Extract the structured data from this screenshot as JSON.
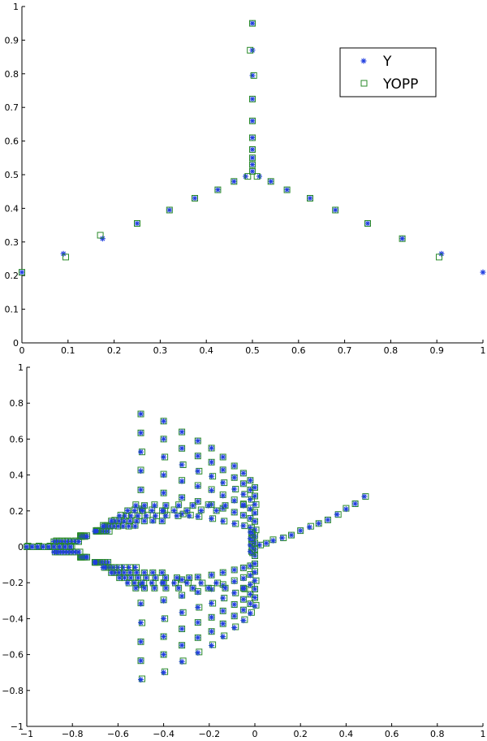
{
  "colors": {
    "Y": "#1f3de0",
    "YOPP": "#2a8a2a"
  },
  "chart_data": [
    {
      "type": "scatter",
      "title": "",
      "xlabel": "",
      "ylabel": "",
      "xlim": [
        0,
        1
      ],
      "ylim": [
        0,
        1
      ],
      "xticks": [
        "0",
        "0.1",
        "0.2",
        "0.3",
        "0.4",
        "0.5",
        "0.6",
        "0.7",
        "0.8",
        "0.9",
        "1"
      ],
      "yticks": [
        "0",
        "0.1",
        "0.2",
        "0.3",
        "0.4",
        "0.5",
        "0.6",
        "0.7",
        "0.8",
        "0.9",
        "1"
      ],
      "grid": false,
      "legend": {
        "placement": "top-right",
        "entries": [
          "Y",
          "YOPP"
        ]
      },
      "series": [
        {
          "name": "Y",
          "marker": "star",
          "points": [
            [
              0.0,
              0.21
            ],
            [
              0.09,
              0.265
            ],
            [
              0.175,
              0.31
            ],
            [
              0.25,
              0.355
            ],
            [
              0.32,
              0.395
            ],
            [
              0.375,
              0.43
            ],
            [
              0.425,
              0.455
            ],
            [
              0.46,
              0.48
            ],
            [
              0.485,
              0.495
            ],
            [
              0.5,
              0.51
            ],
            [
              0.5,
              0.53
            ],
            [
              0.5,
              0.55
            ],
            [
              0.5,
              0.575
            ],
            [
              0.5,
              0.61
            ],
            [
              0.5,
              0.66
            ],
            [
              0.5,
              0.725
            ],
            [
              0.5,
              0.795
            ],
            [
              0.5,
              0.87
            ],
            [
              0.5,
              0.95
            ],
            [
              0.515,
              0.495
            ],
            [
              0.54,
              0.48
            ],
            [
              0.575,
              0.455
            ],
            [
              0.625,
              0.43
            ],
            [
              0.68,
              0.395
            ],
            [
              0.75,
              0.355
            ],
            [
              0.825,
              0.31
            ],
            [
              0.91,
              0.265
            ],
            [
              1.0,
              0.21
            ]
          ]
        },
        {
          "name": "YOPP",
          "marker": "square",
          "points": [
            [
              0.0,
              0.21
            ],
            [
              0.095,
              0.255
            ],
            [
              0.17,
              0.32
            ],
            [
              0.25,
              0.355
            ],
            [
              0.32,
              0.395
            ],
            [
              0.375,
              0.43
            ],
            [
              0.425,
              0.455
            ],
            [
              0.46,
              0.48
            ],
            [
              0.49,
              0.495
            ],
            [
              0.5,
              0.51
            ],
            [
              0.5,
              0.53
            ],
            [
              0.5,
              0.55
            ],
            [
              0.5,
              0.575
            ],
            [
              0.5,
              0.61
            ],
            [
              0.5,
              0.66
            ],
            [
              0.5,
              0.725
            ],
            [
              0.503,
              0.795
            ],
            [
              0.495,
              0.87
            ],
            [
              0.5,
              0.95
            ],
            [
              0.51,
              0.495
            ],
            [
              0.54,
              0.48
            ],
            [
              0.575,
              0.455
            ],
            [
              0.625,
              0.43
            ],
            [
              0.68,
              0.395
            ],
            [
              0.75,
              0.355
            ],
            [
              0.825,
              0.31
            ],
            [
              0.905,
              0.255
            ]
          ]
        }
      ]
    },
    {
      "type": "scatter",
      "title": "",
      "xlabel": "",
      "ylabel": "",
      "xlim": [
        -1,
        1
      ],
      "ylim": [
        -1,
        1
      ],
      "xticks": [
        "−1",
        "−0.8",
        "−0.6",
        "−0.4",
        "−0.2",
        "0",
        "0.2",
        "0.4",
        "0.6",
        "0.8",
        "1"
      ],
      "yticks": [
        "−1",
        "−0.8",
        "−0.6",
        "−0.4",
        "−0.2",
        "0",
        "0.2",
        "0.4",
        "0.6",
        "0.8",
        "1"
      ],
      "grid": false,
      "legend": null,
      "description_of_pattern": {
        "arrow_shape_columns_x": [
          -0.5,
          -0.4,
          -0.32,
          -0.25,
          -0.19,
          -0.14,
          -0.09,
          -0.05,
          -0.02,
          0.0
        ],
        "column_half_heights": [
          0.74,
          0.7,
          0.64,
          0.59,
          0.55,
          0.5,
          0.45,
          0.41,
          0.37,
          0.33
        ],
        "tail_points": [
          [
            0.02,
            0.01
          ],
          [
            0.05,
            0.02
          ],
          [
            0.08,
            0.035
          ],
          [
            0.12,
            0.05
          ],
          [
            0.16,
            0.065
          ],
          [
            0.2,
            0.09
          ],
          [
            0.24,
            0.11
          ],
          [
            0.28,
            0.13
          ],
          [
            0.32,
            0.15
          ],
          [
            0.36,
            0.18
          ],
          [
            0.4,
            0.21
          ],
          [
            0.44,
            0.24
          ],
          [
            0.48,
            0.28
          ]
        ],
        "left_tip": [
          -1.0,
          0.0
        ]
      }
    }
  ]
}
